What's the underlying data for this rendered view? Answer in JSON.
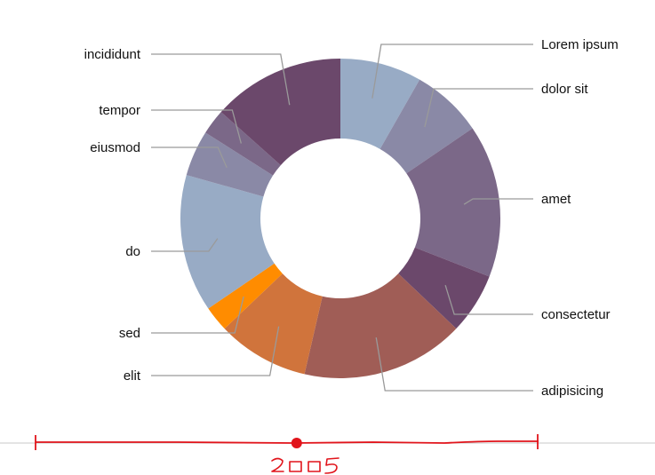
{
  "chart_data": {
    "type": "pie",
    "subtype": "donut",
    "categories": [
      "Lorem ipsum",
      "dolor sit",
      "amet",
      "consectetur",
      "adipisicing",
      "elit",
      "sed",
      "do",
      "eiusmod",
      "tempor",
      "incididunt"
    ],
    "values": [
      8,
      7,
      15,
      6,
      16,
      9,
      2.5,
      13.5,
      4.5,
      2.5,
      13
    ],
    "colors": [
      "#98abc5",
      "#8a89a6",
      "#7b6888",
      "#6b486b",
      "#a05d56",
      "#d0743c",
      "#ff8c00",
      "#98abc5",
      "#8a89a6",
      "#7b6888",
      "#6b486b"
    ],
    "title": "",
    "legend": "none"
  },
  "slider": {
    "value": 2005,
    "value_label": "2005",
    "position_fraction": 0.52,
    "color": "#e1141b"
  }
}
